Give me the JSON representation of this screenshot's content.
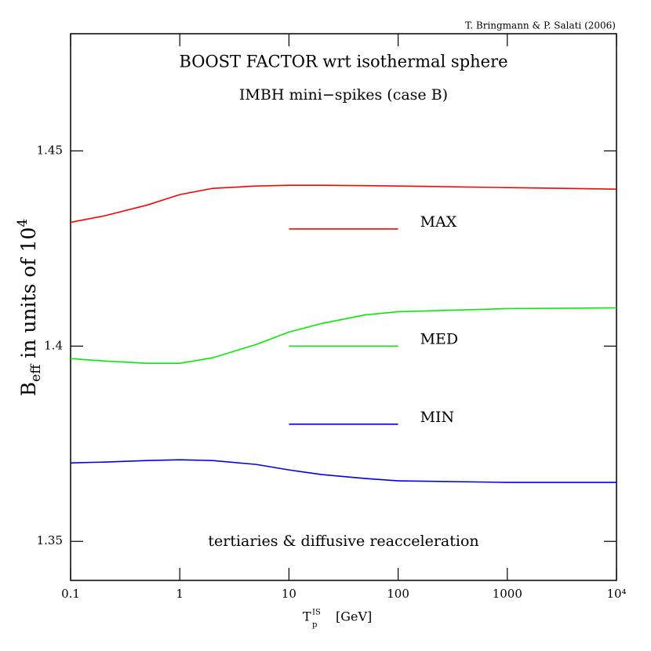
{
  "chart_data": {
    "type": "line",
    "title": "BOOST FACTOR wrt isothermal sphere",
    "subtitle": "IMBH mini−spikes (case B)",
    "annotation": "tertiaries & diffusive reacceleration",
    "credit": "T. Bringmann & P. Salati (2006)",
    "y_label": {
      "symbol": "B",
      "subscript": "eff",
      "text": "in units of 10",
      "superscript": "4"
    },
    "x_label": {
      "symbol": "T",
      "superscript": "IS",
      "subscript": "p",
      "text": "[GeV]"
    },
    "x": [
      0.1,
      0.2,
      0.5,
      1,
      2,
      5,
      10,
      20,
      50,
      100,
      1000,
      10000
    ],
    "series": [
      {
        "name": "MAX",
        "color": "#ff0000",
        "legend_y": 1.43,
        "values": [
          1.4317,
          1.4333,
          1.4361,
          1.4388,
          1.4404,
          1.441,
          1.4412,
          1.4412,
          1.4411,
          1.441,
          1.4406,
          1.4402
        ]
      },
      {
        "name": "MED",
        "color": "#00ee00",
        "legend_y": 1.4,
        "values": [
          1.3968,
          1.3962,
          1.3956,
          1.3956,
          1.397,
          1.4004,
          1.4036,
          1.4058,
          1.408,
          1.4088,
          1.4096,
          1.4098
        ]
      },
      {
        "name": "MIN",
        "color": "#0000ee",
        "legend_y": 1.38,
        "values": [
          1.3701,
          1.3703,
          1.3707,
          1.3709,
          1.3707,
          1.3697,
          1.3683,
          1.3671,
          1.3661,
          1.3655,
          1.3651,
          1.3651
        ]
      }
    ],
    "legend_x": [
      10,
      100
    ],
    "xlog": true,
    "xlim": [
      0.1,
      10000
    ],
    "xticks": [
      0.1,
      1,
      10,
      100,
      1000,
      {
        "value": 10000,
        "label": "10⁴"
      }
    ],
    "ylim": [
      1.34,
      1.48
    ],
    "yticks": [
      1.35,
      1.4,
      1.45
    ]
  }
}
